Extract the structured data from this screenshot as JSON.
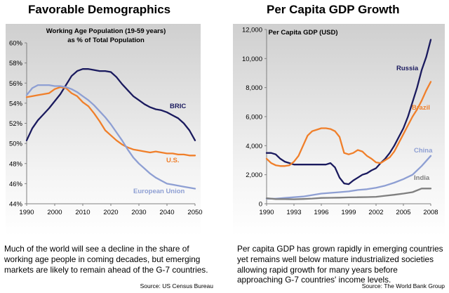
{
  "left_panel": {
    "title": "Favorable Demographics",
    "description": "Much of the world will see a decline in the share of working age people in coming decades, but emerging markets are likely to remain ahead of the G-7 countries.",
    "source": "Source: US Census Bureau"
  },
  "right_panel": {
    "title": "Per Capita GDP Growth",
    "description": "Per capita GDP has grown rapidly in emerging countries yet remains well below mature industrialized societies allowing rapid growth for many years before approaching G-7 countries' income levels.",
    "source": "Source: The World Bank Group"
  },
  "chart_data": [
    {
      "type": "line",
      "title": "Working Age Population (19-59 years)",
      "subtitle": "as % of Total Population",
      "xlim": [
        1990,
        2050
      ],
      "ylim": [
        44,
        60
      ],
      "x_ticks": [
        1990,
        2000,
        2010,
        2020,
        2030,
        2040,
        2050
      ],
      "x_tick_labels": [
        "1990",
        "2000",
        "2010",
        "2020",
        "2030",
        "2040",
        "2050"
      ],
      "y_ticks": [
        44,
        46,
        48,
        50,
        52,
        54,
        56,
        58,
        60
      ],
      "y_tick_labels": [
        "44%",
        "46%",
        "48%",
        "50%",
        "52%",
        "54%",
        "56%",
        "58%",
        "60%"
      ],
      "grid": false,
      "legend": "inline labels",
      "series": [
        {
          "name": "BRIC",
          "color": "#1a1a5e",
          "x": [
            1990,
            1992,
            1994,
            1996,
            1998,
            2000,
            2002,
            2004,
            2006,
            2008,
            2010,
            2012,
            2014,
            2016,
            2018,
            2020,
            2022,
            2024,
            2026,
            2028,
            2030,
            2032,
            2034,
            2036,
            2038,
            2040,
            2042,
            2044,
            2046,
            2048,
            2050
          ],
          "y": [
            50.3,
            51.5,
            52.3,
            52.9,
            53.5,
            54.2,
            54.9,
            55.8,
            56.7,
            57.2,
            57.4,
            57.4,
            57.3,
            57.2,
            57.2,
            57.1,
            56.6,
            55.9,
            55.3,
            54.7,
            54.3,
            53.9,
            53.6,
            53.4,
            53.3,
            53.1,
            52.8,
            52.5,
            52.0,
            51.3,
            50.3
          ]
        },
        {
          "name": "U.S.",
          "color": "#f07f2a",
          "x": [
            1990,
            1992,
            1994,
            1996,
            1998,
            2000,
            2002,
            2004,
            2006,
            2008,
            2010,
            2012,
            2014,
            2016,
            2018,
            2020,
            2022,
            2024,
            2026,
            2028,
            2030,
            2032,
            2034,
            2036,
            2038,
            2040,
            2042,
            2044,
            2046,
            2048,
            2050
          ],
          "y": [
            54.6,
            54.7,
            54.8,
            54.9,
            55.0,
            55.4,
            55.6,
            55.5,
            55.0,
            54.7,
            54.1,
            53.7,
            53.0,
            52.2,
            51.3,
            50.8,
            50.3,
            49.9,
            49.6,
            49.4,
            49.3,
            49.2,
            49.1,
            49.2,
            49.1,
            49.0,
            49.0,
            48.9,
            48.9,
            48.8,
            48.8
          ]
        },
        {
          "name": "European Union",
          "color": "#8e9fd3",
          "x": [
            1990,
            1992,
            1994,
            1996,
            1998,
            2000,
            2002,
            2004,
            2006,
            2008,
            2010,
            2012,
            2014,
            2016,
            2018,
            2020,
            2022,
            2024,
            2026,
            2028,
            2030,
            2032,
            2034,
            2036,
            2038,
            2040,
            2042,
            2044,
            2046,
            2048,
            2050
          ],
          "y": [
            54.8,
            55.5,
            55.8,
            55.8,
            55.8,
            55.7,
            55.7,
            55.6,
            55.4,
            55.1,
            54.7,
            54.3,
            53.8,
            53.2,
            52.6,
            51.9,
            51.1,
            50.3,
            49.4,
            48.6,
            48.0,
            47.5,
            47.0,
            46.6,
            46.3,
            46.0,
            45.9,
            45.8,
            45.7,
            45.6,
            45.5
          ]
        }
      ]
    },
    {
      "type": "line",
      "title": "Per Capita GDP (USD)",
      "xlim": [
        1990,
        2008
      ],
      "ylim": [
        0,
        12000
      ],
      "x_ticks": [
        1990,
        1993,
        1996,
        1999,
        2002,
        2005,
        2008
      ],
      "x_tick_labels": [
        "1990",
        "1993",
        "1996",
        "1999",
        "2002",
        "2005",
        "2008"
      ],
      "y_ticks": [
        0,
        2000,
        4000,
        6000,
        8000,
        10000,
        12000
      ],
      "y_tick_labels": [
        "0",
        "2,000",
        "4,000",
        "6,000",
        "8,000",
        "10,000",
        "12,000"
      ],
      "grid": false,
      "legend": "inline labels",
      "series": [
        {
          "name": "Russia",
          "color": "#1a1a5e",
          "x": [
            1990,
            1990.5,
            1991,
            1991.5,
            1992,
            1992.5,
            1993,
            1993.5,
            1994,
            1994.5,
            1995,
            1995.5,
            1996,
            1996.5,
            1997,
            1997.5,
            1998,
            1998.5,
            1999,
            1999.5,
            2000,
            2000.5,
            2001,
            2001.5,
            2002,
            2002.5,
            2003,
            2003.5,
            2004,
            2004.5,
            2005,
            2005.5,
            2006,
            2006.5,
            2007,
            2007.5,
            2008
          ],
          "y": [
            3500,
            3500,
            3400,
            3100,
            2900,
            2800,
            2700,
            2700,
            2700,
            2700,
            2700,
            2700,
            2700,
            2700,
            2800,
            2500,
            1800,
            1400,
            1350,
            1600,
            1800,
            2000,
            2100,
            2300,
            2450,
            2800,
            3100,
            3500,
            4000,
            4600,
            5200,
            6000,
            7000,
            8000,
            9200,
            10100,
            11300
          ]
        },
        {
          "name": "Brazil",
          "color": "#f07f2a",
          "x": [
            1990,
            1990.5,
            1991,
            1991.5,
            1992,
            1992.5,
            1993,
            1993.5,
            1994,
            1994.5,
            1995,
            1995.5,
            1996,
            1996.5,
            1997,
            1997.5,
            1998,
            1998.5,
            1999,
            1999.5,
            2000,
            2000.5,
            2001,
            2001.5,
            2002,
            2002.5,
            2003,
            2003.5,
            2004,
            2004.5,
            2005,
            2005.5,
            2006,
            2006.5,
            2007,
            2007.5,
            2008
          ],
          "y": [
            3100,
            2800,
            2650,
            2600,
            2600,
            2650,
            2900,
            3300,
            4000,
            4700,
            5000,
            5100,
            5200,
            5200,
            5150,
            5000,
            4600,
            3500,
            3400,
            3500,
            3700,
            3600,
            3300,
            3100,
            2850,
            2800,
            3000,
            3200,
            3600,
            4200,
            4800,
            5400,
            6000,
            6500,
            7100,
            7800,
            8400
          ]
        },
        {
          "name": "China",
          "color": "#8e9fd3",
          "x": [
            1990,
            1991,
            1992,
            1993,
            1994,
            1995,
            1996,
            1997,
            1998,
            1999,
            2000,
            2001,
            2002,
            2003,
            2004,
            2005,
            2006,
            2007,
            2008
          ],
          "y": [
            350,
            350,
            400,
            450,
            500,
            600,
            700,
            750,
            800,
            850,
            950,
            1000,
            1100,
            1250,
            1450,
            1700,
            2000,
            2600,
            3300
          ]
        },
        {
          "name": "India",
          "color": "#7f7f7f",
          "x": [
            1990,
            1991,
            1992,
            1993,
            1994,
            1995,
            1996,
            1997,
            1998,
            1999,
            2000,
            2001,
            2002,
            2003,
            2004,
            2005,
            2006,
            2007,
            2008
          ],
          "y": [
            380,
            320,
            320,
            310,
            330,
            360,
            400,
            410,
            420,
            440,
            450,
            460,
            480,
            550,
            620,
            700,
            800,
            1050,
            1050
          ]
        }
      ]
    }
  ]
}
